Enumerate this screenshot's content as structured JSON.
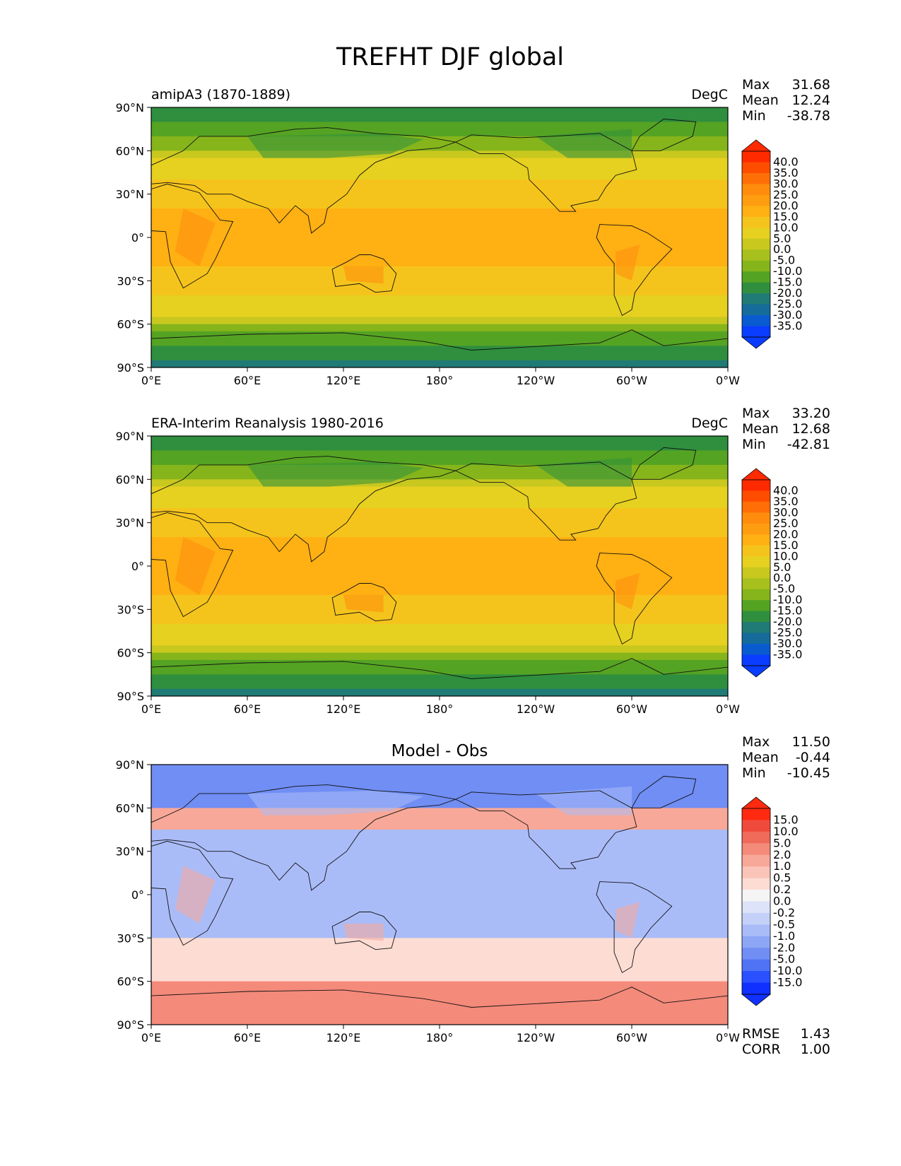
{
  "figure": {
    "title": "TREFHT DJF global"
  },
  "lon_ticks": [
    "0°E",
    "60°E",
    "120°E",
    "180°",
    "120°W",
    "60°W",
    "0°W"
  ],
  "lat_ticks": [
    "90°N",
    "60°N",
    "30°N",
    "0°",
    "30°S",
    "60°S",
    "90°S"
  ],
  "panels": [
    {
      "id": "model",
      "left_title": "amipA3 (1870-1889)",
      "center_title": "",
      "units": "DegC",
      "stats": {
        "max_label": "Max",
        "max": "31.68",
        "mean_label": "Mean",
        "mean": "12.24",
        "min_label": "Min",
        "min": "-38.78"
      },
      "colorbar": {
        "labels": [
          "40.0",
          "35.0",
          "30.0",
          "25.0",
          "20.0",
          "15.0",
          "10.0",
          "5.0",
          "0.0",
          "-5.0",
          "-10.0",
          "-15.0",
          "-20.0",
          "-25.0",
          "-30.0",
          "-35.0"
        ],
        "colors": [
          "#ff2a00",
          "#ff4d00",
          "#ff6f08",
          "#ff8c0d",
          "#ff9d10",
          "#ffb013",
          "#f5c41c",
          "#e6d020",
          "#c8c81f",
          "#a8c01e",
          "#85b51b",
          "#55a323",
          "#2f8f3e",
          "#207a75",
          "#156c9a",
          "#0a5ad0",
          "#0a3dff"
        ],
        "under_color": "#0a3dff",
        "over_color": "#ff2a00"
      },
      "field_type": "abs"
    },
    {
      "id": "obs",
      "left_title": "ERA-Interim Reanalysis 1980-2016",
      "center_title": "",
      "units": "DegC",
      "stats": {
        "max_label": "Max",
        "max": "33.20",
        "mean_label": "Mean",
        "mean": "12.68",
        "min_label": "Min",
        "min": "-42.81"
      },
      "colorbar": {
        "labels": [
          "40.0",
          "35.0",
          "30.0",
          "25.0",
          "20.0",
          "15.0",
          "10.0",
          "5.0",
          "0.0",
          "-5.0",
          "-10.0",
          "-15.0",
          "-20.0",
          "-25.0",
          "-30.0",
          "-35.0"
        ],
        "colors": [
          "#ff2a00",
          "#ff4d00",
          "#ff6f08",
          "#ff8c0d",
          "#ff9d10",
          "#ffb013",
          "#f5c41c",
          "#e6d020",
          "#c8c81f",
          "#a8c01e",
          "#85b51b",
          "#55a323",
          "#2f8f3e",
          "#207a75",
          "#156c9a",
          "#0a5ad0",
          "#0a3dff"
        ],
        "under_color": "#0a3dff",
        "over_color": "#ff2a00"
      },
      "field_type": "abs"
    },
    {
      "id": "diff",
      "left_title": "",
      "center_title": "Model - Obs",
      "units": "",
      "stats": {
        "max_label": "Max",
        "max": "11.50",
        "mean_label": "Mean",
        "mean": "-0.44",
        "min_label": "Min",
        "min": "-10.45"
      },
      "colorbar": {
        "labels": [
          "15.0",
          "10.0",
          "5.0",
          "2.0",
          "1.0",
          "0.5",
          "0.2",
          "0.0",
          "-0.2",
          "-0.5",
          "-1.0",
          "-2.0",
          "-5.0",
          "-10.0",
          "-15.0"
        ],
        "colors": [
          "#ff2a10",
          "#f04a3c",
          "#f06a5a",
          "#f48a7a",
          "#f8a898",
          "#fbc4b8",
          "#fddcd4",
          "#f5f5f5",
          "#dde3f8",
          "#c5d0f8",
          "#aabcf8",
          "#8ea6f6",
          "#708ef4",
          "#5072f4",
          "#2a50ff",
          "#1030ff"
        ],
        "under_color": "#1030ff",
        "over_color": "#ff2a10"
      },
      "field_type": "diff",
      "rmse_label": "RMSE",
      "rmse": "1.43",
      "corr_label": "CORR",
      "corr": "1.00"
    }
  ]
}
